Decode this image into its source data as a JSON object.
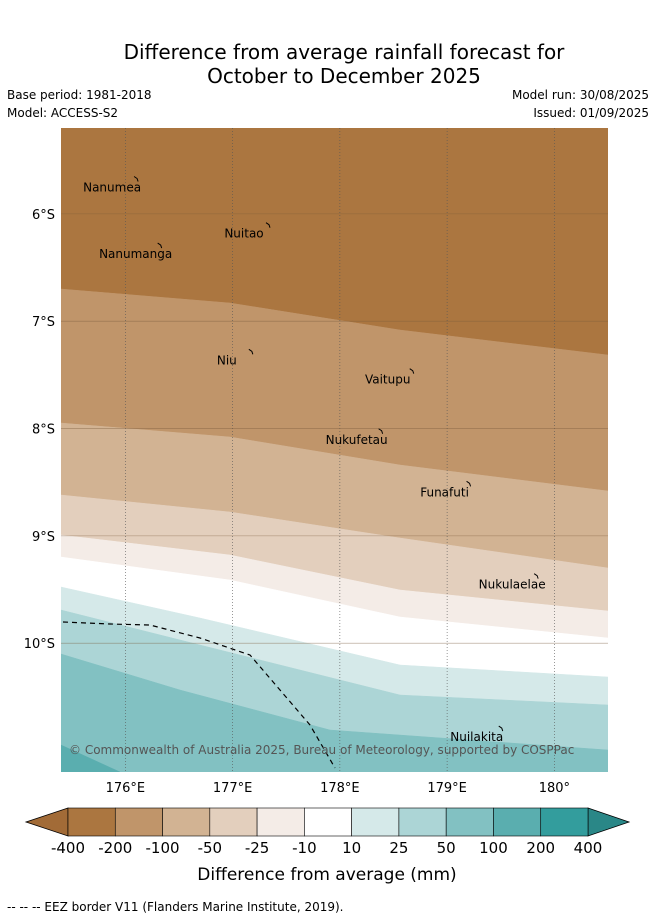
{
  "title_line1": "Difference from average rainfall forecast for",
  "title_line2": "October to December 2025",
  "base_period": "Base period: 1981-2018",
  "model": "Model: ACCESS-S2",
  "model_run": "Model run: 30/08/2025",
  "issued": "Issued: 01/09/2025",
  "copyright": "© Commonwealth of Australia 2025, Bureau of Meteorology, supported by COSPPac",
  "lat_labels": [
    "6°S",
    "7°S",
    "8°S",
    "9°S",
    "10°S"
  ],
  "lat_values": [
    -6,
    -7,
    -8,
    -9,
    -10
  ],
  "lon_labels": [
    "176°E",
    "177°E",
    "178°E",
    "179°E",
    "180°"
  ],
  "lon_values": [
    176,
    177,
    178,
    179,
    180
  ],
  "map_extent": {
    "lon_min": 175.4,
    "lon_max": 180.5,
    "lat_min": -11.2,
    "lat_max": -5.2
  },
  "islands": [
    {
      "name": "Nanumea",
      "lon": 176.1,
      "lat": -5.68
    },
    {
      "name": "Nuitao",
      "lon": 177.33,
      "lat": -6.11
    },
    {
      "name": "Nanumanga",
      "lon": 176.32,
      "lat": -6.3
    },
    {
      "name": "Niu",
      "lon": 177.17,
      "lat": -7.29
    },
    {
      "name": "Vaitupu",
      "lon": 178.67,
      "lat": -7.47
    },
    {
      "name": "Nukufetau",
      "lon": 178.38,
      "lat": -8.03
    },
    {
      "name": "Funafuti",
      "lon": 179.2,
      "lat": -8.52
    },
    {
      "name": "Nukulaelae",
      "lon": 179.83,
      "lat": -9.38
    },
    {
      "name": "Nuilakita",
      "lon": 179.5,
      "lat": -10.8
    }
  ],
  "legend": {
    "labels": [
      "-400",
      "-200",
      "-100",
      "-50",
      "-25",
      "-10",
      "10",
      "25",
      "50",
      "100",
      "200",
      "400"
    ],
    "colors": [
      "#ab7640",
      "#c0956a",
      "#d2b393",
      "#e3cfbd",
      "#f4ece7",
      "#ffffff",
      "#d5e9e9",
      "#acd5d6",
      "#82c1c2",
      "#5aaeaf",
      "#339d9d"
    ],
    "low_extend_color": "#a26b37",
    "high_extend_color": "#2a8787",
    "title": "Difference from average (mm)"
  },
  "footnote": "-- -- -- EEZ border V11 (Flanders Marine Institute, 2019)."
}
